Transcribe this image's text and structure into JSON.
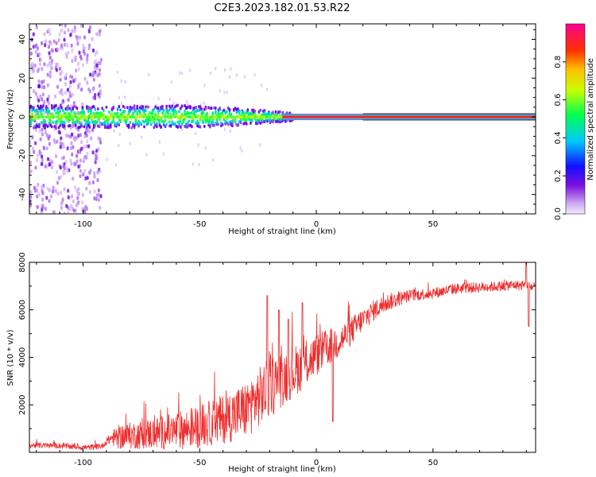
{
  "title": "C2E3.2023.182.01.53.R22",
  "chart_data": [
    {
      "type": "heatmap",
      "xlabel": "Height of straight line (km)",
      "ylabel": "Frequency (Hz)",
      "xlim": [
        -123,
        94
      ],
      "ylim": [
        -50,
        48
      ],
      "xticks": [
        -100,
        -50,
        0,
        50
      ],
      "yticks": [
        -40,
        -20,
        0,
        20,
        40
      ],
      "colorbar": {
        "label": "Normalized spectral amplitude",
        "range": [
          0,
          1
        ],
        "ticks": [
          0.0,
          0.2,
          0.4,
          0.6,
          0.8
        ],
        "colormap": [
          "#d8b8f0",
          "#8a2be2",
          "#0000ff",
          "#00d0ff",
          "#00ff40",
          "#ffff00",
          "#ff8000",
          "#ff0000",
          "#ff0080"
        ]
      },
      "features": {
        "carrier_line_hz": 0,
        "noise_region_km": [
          -123,
          -92
        ],
        "noise_band_hz": [
          -50,
          48
        ],
        "broad_spread_km": [
          -123,
          -15
        ],
        "broad_spread_hz": [
          -6,
          6
        ],
        "clean_carrier_from_km": -15
      }
    },
    {
      "type": "line",
      "xlabel": "Height of straight line (km)",
      "ylabel": "SNR (10 * v/v)",
      "xlim": [
        -123,
        94
      ],
      "ylim": [
        0,
        8000
      ],
      "xticks": [
        -100,
        -50,
        0,
        50
      ],
      "yticks": [
        2000,
        4000,
        6000,
        8000
      ],
      "color": "#ee2a2a",
      "envelope": {
        "x": [
          -123,
          -110,
          -98,
          -92,
          -88,
          -80,
          -70,
          -60,
          -50,
          -40,
          -30,
          -25,
          -20,
          -15,
          -10,
          -5,
          0,
          5,
          10,
          15,
          20,
          25,
          30,
          40,
          50,
          60,
          70,
          80,
          85,
          90,
          94
        ],
        "y": [
          300,
          280,
          200,
          260,
          600,
          700,
          800,
          900,
          1100,
          1400,
          1800,
          2300,
          2700,
          3100,
          3400,
          3700,
          4100,
          4400,
          4700,
          5100,
          5600,
          6000,
          6300,
          6600,
          6700,
          6900,
          6950,
          7000,
          7050,
          7000,
          6950
        ]
      },
      "spikes": [
        {
          "x": -21,
          "y": 6600
        },
        {
          "x": -16,
          "y": 6000
        },
        {
          "x": -12,
          "y": 5600
        },
        {
          "x": -6,
          "y": 6300
        },
        {
          "x": 7,
          "y": 1300
        },
        {
          "x": 90,
          "y": 8000
        },
        {
          "x": 91,
          "y": 5300
        }
      ],
      "noise_amplitude": {
        "x": [
          -123,
          -90,
          -85,
          -50,
          -30,
          -20,
          0,
          20,
          40,
          94
        ],
        "y": [
          120,
          120,
          500,
          900,
          1200,
          1300,
          900,
          500,
          250,
          200
        ]
      }
    }
  ]
}
